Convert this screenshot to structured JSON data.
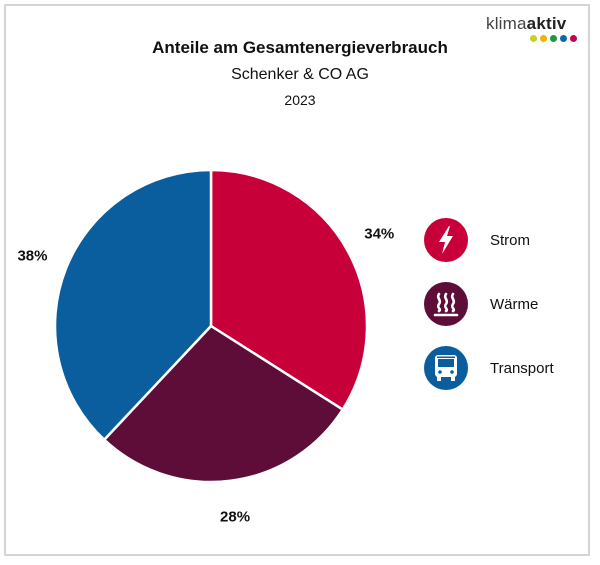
{
  "header": {
    "title": "Anteile am Gesamtenergieverbrauch",
    "subtitle": "Schenker & CO AG",
    "year": "2023"
  },
  "logo": {
    "text_light": "klima",
    "text_bold": "aktiv",
    "dot_colors": [
      "#c5d21f",
      "#f2b200",
      "#1e9a3e",
      "#0a69a8",
      "#c9005a"
    ]
  },
  "chart_data": {
    "type": "pie",
    "title": "Anteile am Gesamtenergieverbrauch",
    "subtitle": "Schenker & CO AG",
    "year": "2023",
    "slices": [
      {
        "name": "Strom",
        "value": 34,
        "label": "34%",
        "color": "#c8003a",
        "icon": "lightning-icon"
      },
      {
        "name": "Wärme",
        "value": 28,
        "label": "28%",
        "color": "#5e0c38",
        "icon": "heat-icon"
      },
      {
        "name": "Transport",
        "value": 38,
        "label": "38%",
        "color": "#0b5e9e",
        "icon": "bus-icon"
      }
    ],
    "legend_position": "right"
  }
}
